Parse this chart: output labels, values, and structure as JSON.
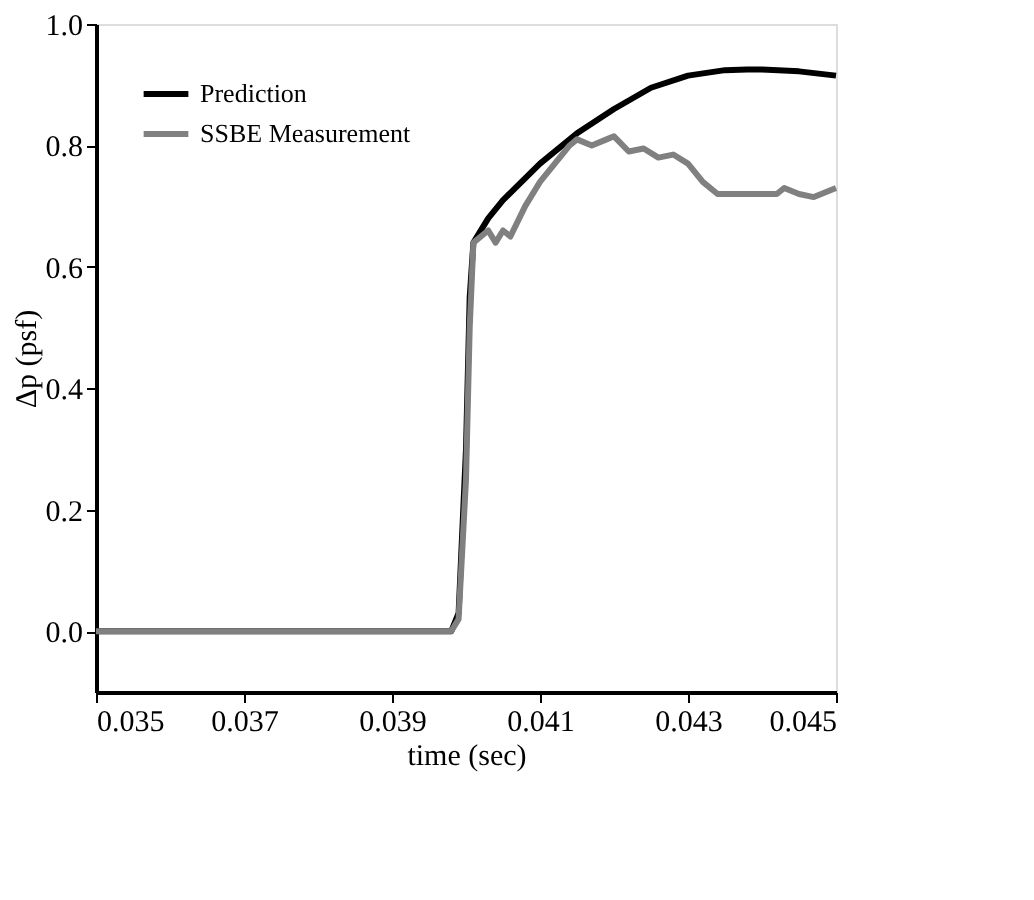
{
  "chart_data": {
    "type": "line",
    "xlabel": "time (sec)",
    "ylabel": "Δp (psf)",
    "xlim": [
      0.035,
      0.045
    ],
    "xticks": [
      0.035,
      0.037,
      0.039,
      0.041,
      0.043,
      0.045
    ],
    "ylim": [
      -0.1,
      1.0
    ],
    "yticks": [
      {
        "value": 0,
        "label": "0.0"
      },
      0.2,
      0.4,
      0.6,
      0.8,
      {
        "value": 1,
        "label": "1.0"
      }
    ],
    "grid": false,
    "legend": "top left",
    "line_style": "solid",
    "series": [
      {
        "name": "Prediction",
        "color": "#000000",
        "x": [
          0.035,
          0.0395,
          0.0398,
          0.0399,
          0.04,
          0.04005,
          0.0401,
          0.0403,
          0.0405,
          0.041,
          0.0415,
          0.042,
          0.0425,
          0.043,
          0.0435,
          0.0438,
          0.044,
          0.0445,
          0.045
        ],
        "values": [
          0.0,
          0.0,
          0.0,
          0.03,
          0.3,
          0.55,
          0.64,
          0.68,
          0.71,
          0.77,
          0.82,
          0.86,
          0.895,
          0.915,
          0.924,
          0.925,
          0.925,
          0.922,
          0.915
        ]
      },
      {
        "name": "SSBE Measurement",
        "color": "#808080",
        "x": [
          0.035,
          0.0395,
          0.0398,
          0.0399,
          0.04,
          0.04005,
          0.0401,
          0.0403,
          0.0404,
          0.0405,
          0.0406,
          0.0408,
          0.041,
          0.0412,
          0.0414,
          0.0415,
          0.0417,
          0.0419,
          0.042,
          0.0422,
          0.0424,
          0.0426,
          0.0428,
          0.043,
          0.0432,
          0.0434,
          0.0436,
          0.044,
          0.0442,
          0.0443,
          0.0445,
          0.0447,
          0.045
        ],
        "values": [
          0.0,
          0.0,
          0.0,
          0.02,
          0.25,
          0.5,
          0.64,
          0.66,
          0.64,
          0.66,
          0.65,
          0.7,
          0.74,
          0.77,
          0.8,
          0.81,
          0.8,
          0.81,
          0.815,
          0.79,
          0.795,
          0.78,
          0.785,
          0.77,
          0.74,
          0.72,
          0.72,
          0.72,
          0.72,
          0.73,
          0.72,
          0.715,
          0.73
        ]
      }
    ]
  }
}
